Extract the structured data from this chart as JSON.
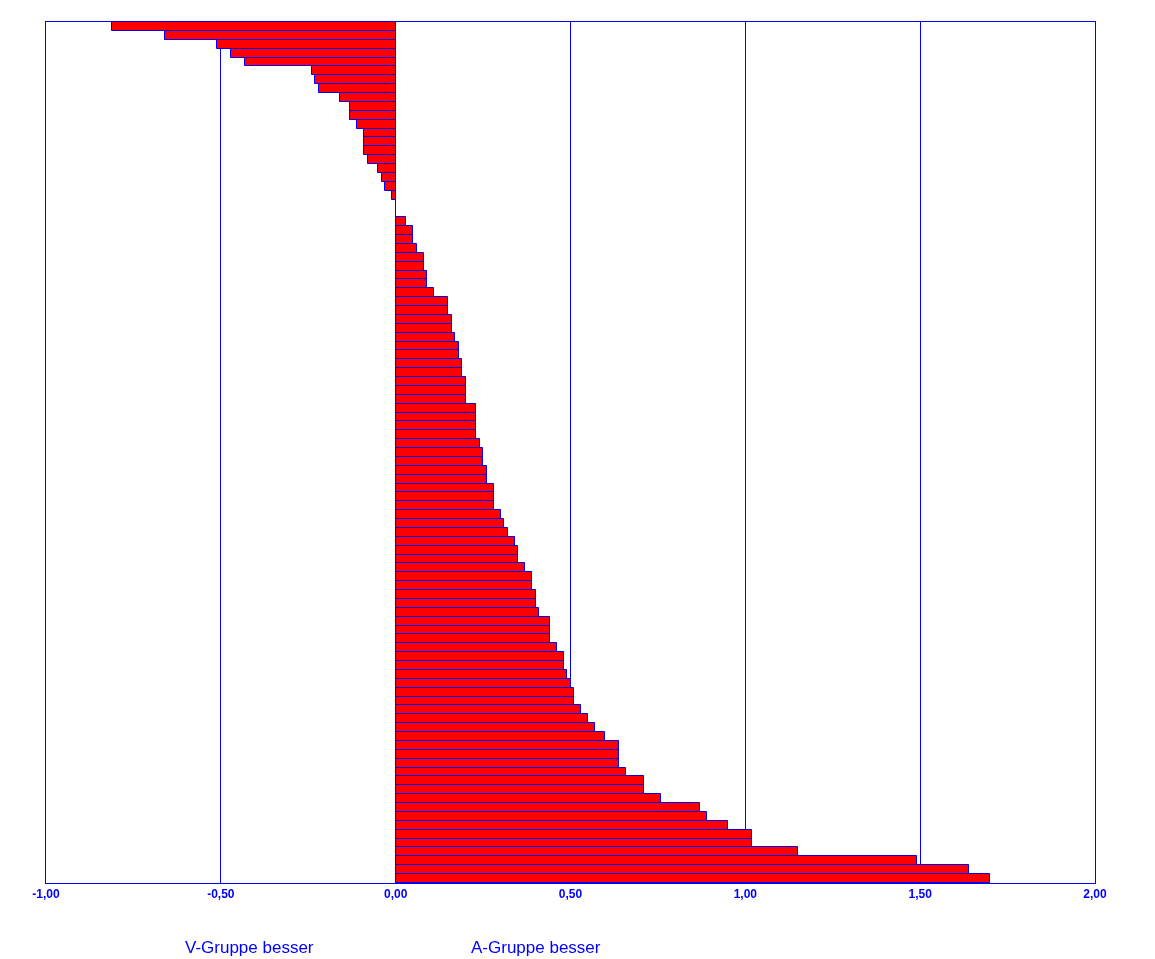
{
  "chart_data": {
    "type": "bar",
    "orientation": "horizontal",
    "categories": [
      null,
      null,
      null,
      null,
      null,
      null,
      null,
      null,
      null,
      null,
      null,
      null,
      null,
      null,
      null,
      null,
      null,
      null,
      null,
      null,
      null,
      null,
      null,
      null,
      null,
      null,
      null,
      null,
      null,
      null,
      null,
      null,
      null,
      null,
      null,
      null,
      null,
      null,
      null,
      null,
      null,
      null,
      null,
      null,
      null,
      null,
      null,
      null,
      null,
      null,
      null,
      null,
      null,
      null,
      null,
      null,
      null,
      null,
      null,
      null,
      null,
      null,
      null,
      null,
      null,
      null,
      null,
      null,
      null,
      null,
      null,
      null,
      null,
      null,
      null,
      null,
      null,
      null,
      null,
      null,
      null,
      null,
      null,
      null,
      null,
      null,
      null,
      null,
      null,
      null,
      null,
      null,
      null,
      null,
      null,
      null,
      null
    ],
    "values": [
      -0.81,
      -0.66,
      -0.51,
      -0.47,
      -0.43,
      -0.24,
      -0.23,
      -0.22,
      -0.16,
      -0.13,
      -0.13,
      -0.11,
      -0.09,
      -0.09,
      -0.09,
      -0.08,
      -0.05,
      -0.04,
      -0.03,
      -0.01,
      0,
      0,
      0.03,
      0.05,
      0.05,
      0.06,
      0.08,
      0.08,
      0.09,
      0.09,
      0.11,
      0.15,
      0.15,
      0.16,
      0.16,
      0.17,
      0.18,
      0.18,
      0.19,
      0.19,
      0.2,
      0.2,
      0.2,
      0.23,
      0.23,
      0.23,
      0.23,
      0.24,
      0.25,
      0.25,
      0.26,
      0.26,
      0.28,
      0.28,
      0.28,
      0.3,
      0.31,
      0.32,
      0.34,
      0.35,
      0.35,
      0.37,
      0.39,
      0.39,
      0.4,
      0.4,
      0.41,
      0.44,
      0.44,
      0.44,
      0.46,
      0.48,
      0.48,
      0.49,
      0.5,
      0.51,
      0.51,
      0.53,
      0.55,
      0.57,
      0.6,
      0.64,
      0.64,
      0.64,
      0.66,
      0.71,
      0.71,
      0.76,
      0.87,
      0.89,
      0.95,
      1.02,
      1.02,
      1.15,
      1.49,
      1.64,
      1.7
    ],
    "color": "#ff0000",
    "xlim": [
      -1,
      2
    ],
    "xticks": [
      {
        "value": -1,
        "label": "-1,00"
      },
      {
        "value": -0.5,
        "label": "-0,50"
      },
      {
        "value": 0,
        "label": "0,00"
      },
      {
        "value": 0.5,
        "label": "0,50"
      },
      {
        "value": 1,
        "label": "1,00"
      },
      {
        "value": 1.5,
        "label": "1,50"
      },
      {
        "value": 2,
        "label": "2,00"
      }
    ],
    "grid": "x",
    "tick_labels": "x",
    "legend": false,
    "annotations": [
      "V-Gruppe besser",
      "A-Gruppe besser"
    ]
  }
}
